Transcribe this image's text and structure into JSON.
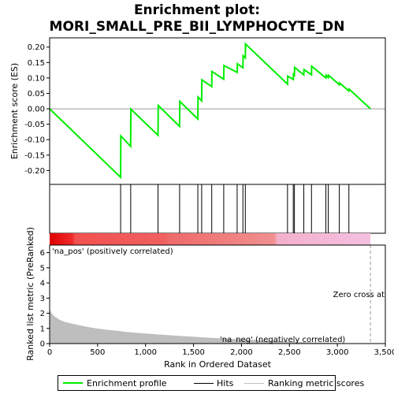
{
  "title_line1": "Enrichment plot:",
  "title_line2": "MORI_SMALL_PRE_BII_LYMPHOCYTE_DN",
  "colors": {
    "enrichment": "#00ee00",
    "hits": "#000000",
    "metric_fill": "#bebebe",
    "pos_label": "#cc0000",
    "neg_label": "#0000cc",
    "zero_line": "#999999"
  },
  "chart_data": {
    "type": "line",
    "xlabel": "Rank in Ordered Dataset",
    "x_ticks": [
      0,
      500,
      1000,
      1500,
      2000,
      2500,
      3000,
      3500
    ],
    "x_tick_labels": [
      "0",
      "500",
      "1,000",
      "1,500",
      "2,000",
      "2,500",
      "3,000",
      "3,500"
    ],
    "xlim": [
      0,
      3500
    ],
    "n_genes": 3345,
    "top_panel": {
      "ylabel": "Enrichment score (ES)",
      "ylim": [
        -0.245,
        0.23
      ],
      "y_ticks": [
        0.2,
        0.15,
        0.1,
        0.05,
        0.0,
        -0.05,
        -0.1,
        -0.15,
        -0.2
      ],
      "y_tick_labels": [
        "0.20",
        "0.15",
        "0.10",
        "0.05",
        "0.00",
        "-0.05",
        "-0.10",
        "-0.15",
        "-0.20"
      ],
      "es_points": [
        [
          0,
          0.0
        ],
        [
          740,
          -0.222
        ],
        [
          742,
          -0.088
        ],
        [
          845,
          -0.122
        ],
        [
          847,
          -0.001
        ],
        [
          1130,
          -0.086
        ],
        [
          1132,
          0.011
        ],
        [
          1355,
          -0.057
        ],
        [
          1357,
          0.024
        ],
        [
          1545,
          -0.033
        ],
        [
          1547,
          0.038
        ],
        [
          1585,
          0.026
        ],
        [
          1587,
          0.094
        ],
        [
          1690,
          0.072
        ],
        [
          1692,
          0.121
        ],
        [
          1815,
          0.096
        ],
        [
          1817,
          0.14
        ],
        [
          1955,
          0.118
        ],
        [
          1957,
          0.146
        ],
        [
          2015,
          0.133
        ],
        [
          2017,
          0.172
        ],
        [
          2040,
          0.165
        ],
        [
          2042,
          0.21
        ],
        [
          2480,
          0.08
        ],
        [
          2482,
          0.106
        ],
        [
          2540,
          0.095
        ],
        [
          2542,
          0.112
        ],
        [
          2552,
          0.109
        ],
        [
          2554,
          0.134
        ],
        [
          2650,
          0.11
        ],
        [
          2652,
          0.127
        ],
        [
          2730,
          0.11
        ],
        [
          2732,
          0.138
        ],
        [
          2880,
          0.1
        ],
        [
          2882,
          0.109
        ],
        [
          2905,
          0.101
        ],
        [
          2907,
          0.109
        ],
        [
          3020,
          0.078
        ],
        [
          3022,
          0.084
        ],
        [
          3120,
          0.058
        ],
        [
          3122,
          0.064
        ],
        [
          3345,
          0.0
        ]
      ]
    },
    "hit_ranks": [
      740,
      845,
      1130,
      1355,
      1545,
      1585,
      1690,
      1815,
      1955,
      2015,
      2040,
      2480,
      2540,
      2552,
      2650,
      2730,
      2880,
      2905,
      3020,
      3120
    ],
    "bottom_panel": {
      "ylabel": "Ranked list metric (PreRanked)",
      "ylim": [
        0,
        6.5
      ],
      "y_ticks": [
        0,
        1,
        2,
        3,
        4,
        5,
        6
      ],
      "y_tick_labels": [
        "0",
        "1",
        "2",
        "3",
        "4",
        "5",
        "6"
      ],
      "metric_points": [
        [
          0,
          2.3
        ],
        [
          20,
          2.0
        ],
        [
          50,
          1.8
        ],
        [
          100,
          1.58
        ],
        [
          150,
          1.44
        ],
        [
          200,
          1.36
        ],
        [
          300,
          1.22
        ],
        [
          400,
          1.09
        ],
        [
          500,
          0.99
        ],
        [
          600,
          0.91
        ],
        [
          700,
          0.84
        ],
        [
          800,
          0.77
        ],
        [
          900,
          0.71
        ],
        [
          1000,
          0.66
        ],
        [
          1200,
          0.57
        ],
        [
          1400,
          0.49
        ],
        [
          1600,
          0.41
        ],
        [
          1800,
          0.34
        ],
        [
          2000,
          0.28
        ],
        [
          2200,
          0.22
        ],
        [
          2400,
          0.16
        ],
        [
          2600,
          0.11
        ],
        [
          2800,
          0.07
        ],
        [
          3000,
          0.04
        ],
        [
          3200,
          0.02
        ],
        [
          3345,
          0.0
        ]
      ],
      "zero_cross_rank": 3345,
      "zero_cross_label": "Zero cross at",
      "pos_label": "'na_pos' (positively correlated)",
      "neg_label": "'na_neg' (negatively correlated)"
    },
    "legend": {
      "enrichment_profile": "Enrichment profile",
      "hits": "Hits",
      "ranking_metric_scores": "Ranking metric scores"
    }
  }
}
